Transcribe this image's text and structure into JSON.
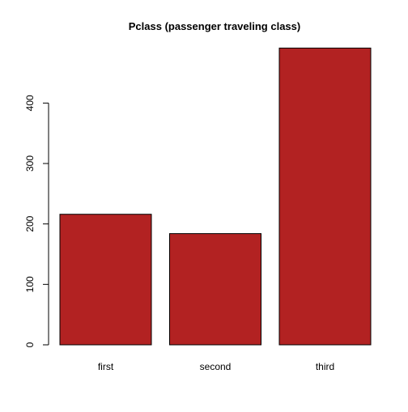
{
  "chart_data": {
    "type": "bar",
    "title": "Pclass (passenger traveling class)",
    "xlabel": "",
    "ylabel": "",
    "categories": [
      "first",
      "second",
      "third"
    ],
    "values": [
      216,
      184,
      491
    ],
    "ylim": [
      0,
      500
    ],
    "yticks": [
      0,
      100,
      200,
      300,
      400
    ],
    "bar_color": "#B22222",
    "grid": false,
    "legend": "none"
  }
}
